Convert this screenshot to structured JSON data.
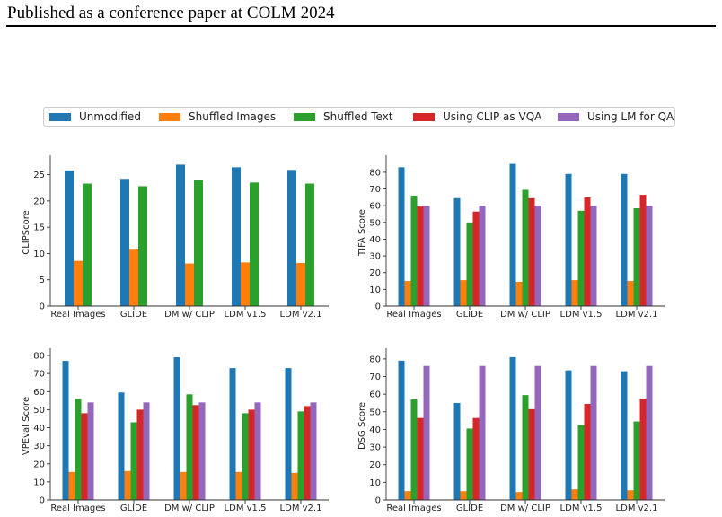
{
  "header": {
    "text": "Published as a conference paper at COLM 2024"
  },
  "legend": {
    "items": [
      {
        "label": "Unmodified",
        "color": "#1f77b4"
      },
      {
        "label": "Shuffled Images",
        "color": "#ff7f0e"
      },
      {
        "label": "Shuffled Text",
        "color": "#2ca02c"
      },
      {
        "label": "Using CLIP as VQA",
        "color": "#d62728"
      },
      {
        "label": "Using LM for QA",
        "color": "#9467bd"
      }
    ]
  },
  "chart_data": [
    {
      "type": "bar",
      "title": "",
      "xlabel": "",
      "ylabel": "CLIPScore",
      "categories": [
        "Real Images",
        "GLIDE",
        "DM w/ CLIP",
        "LDM v1.5",
        "LDM v2.1"
      ],
      "ylim": [
        0,
        28
      ],
      "yticks": [
        0,
        5,
        10,
        15,
        20,
        25
      ],
      "series": [
        {
          "name": "Unmodified",
          "color": "#1f77b4",
          "values": [
            25.8,
            24.2,
            26.9,
            26.4,
            25.9
          ]
        },
        {
          "name": "Shuffled Images",
          "color": "#ff7f0e",
          "values": [
            8.6,
            10.9,
            8.1,
            8.3,
            8.2
          ]
        },
        {
          "name": "Shuffled Text",
          "color": "#2ca02c",
          "values": [
            23.3,
            22.8,
            24.0,
            23.5,
            23.3
          ]
        }
      ]
    },
    {
      "type": "bar",
      "title": "",
      "xlabel": "",
      "ylabel": "TIFA Score",
      "categories": [
        "Real Images",
        "GLIDE",
        "DM w/ CLIP",
        "LDM v1.5",
        "LDM v2.1"
      ],
      "ylim": [
        0,
        88
      ],
      "yticks": [
        0,
        10,
        20,
        30,
        40,
        50,
        60,
        70,
        80
      ],
      "series": [
        {
          "name": "Unmodified",
          "color": "#1f77b4",
          "values": [
            83,
            64.5,
            85,
            79,
            79
          ]
        },
        {
          "name": "Shuffled Images",
          "color": "#ff7f0e",
          "values": [
            15,
            15.5,
            14.5,
            15.5,
            15
          ]
        },
        {
          "name": "Shuffled Text",
          "color": "#2ca02c",
          "values": [
            66,
            50,
            69.5,
            57,
            58.5
          ]
        },
        {
          "name": "Using CLIP as VQA",
          "color": "#d62728",
          "values": [
            59.5,
            56.5,
            64.5,
            65,
            66.5
          ]
        },
        {
          "name": "Using LM for QA",
          "color": "#9467bd",
          "values": [
            60,
            60,
            60,
            60,
            60
          ]
        }
      ]
    },
    {
      "type": "bar",
      "title": "",
      "xlabel": "",
      "ylabel": "VPEval Score",
      "categories": [
        "Real Images",
        "GLIDE",
        "DM w/ CLIP",
        "LDM v1.5",
        "LDM v2.1"
      ],
      "ylim": [
        0,
        82
      ],
      "yticks": [
        0,
        10,
        20,
        30,
        40,
        50,
        60,
        70,
        80
      ],
      "series": [
        {
          "name": "Unmodified",
          "color": "#1f77b4",
          "values": [
            77,
            59.5,
            79,
            73,
            73
          ]
        },
        {
          "name": "Shuffled Images",
          "color": "#ff7f0e",
          "values": [
            15.5,
            16,
            15.5,
            15.5,
            15
          ]
        },
        {
          "name": "Shuffled Text",
          "color": "#2ca02c",
          "values": [
            56,
            43,
            58.5,
            48,
            49
          ]
        },
        {
          "name": "Using CLIP as VQA",
          "color": "#d62728",
          "values": [
            48,
            50,
            52.5,
            50,
            52
          ]
        },
        {
          "name": "Using LM for QA",
          "color": "#9467bd",
          "values": [
            54,
            54,
            54,
            54,
            54
          ]
        }
      ]
    },
    {
      "type": "bar",
      "title": "",
      "xlabel": "",
      "ylabel": "DSG Score",
      "categories": [
        "Real Images",
        "GLIDE",
        "DM w/ CLIP",
        "LDM v1.5",
        "LDM v2.1"
      ],
      "ylim": [
        0,
        84
      ],
      "yticks": [
        0,
        10,
        20,
        30,
        40,
        50,
        60,
        70,
        80
      ],
      "series": [
        {
          "name": "Unmodified",
          "color": "#1f77b4",
          "values": [
            79,
            55,
            81,
            73.5,
            73
          ]
        },
        {
          "name": "Shuffled Images",
          "color": "#ff7f0e",
          "values": [
            5,
            5,
            4.5,
            6,
            5.5
          ]
        },
        {
          "name": "Shuffled Text",
          "color": "#2ca02c",
          "values": [
            57,
            40.5,
            59.5,
            42.5,
            44.5
          ]
        },
        {
          "name": "Using CLIP as VQA",
          "color": "#d62728",
          "values": [
            46.5,
            46.5,
            51.5,
            54.5,
            57.5
          ]
        },
        {
          "name": "Using LM for QA",
          "color": "#9467bd",
          "values": [
            76,
            76,
            76,
            76,
            76
          ]
        }
      ]
    }
  ]
}
